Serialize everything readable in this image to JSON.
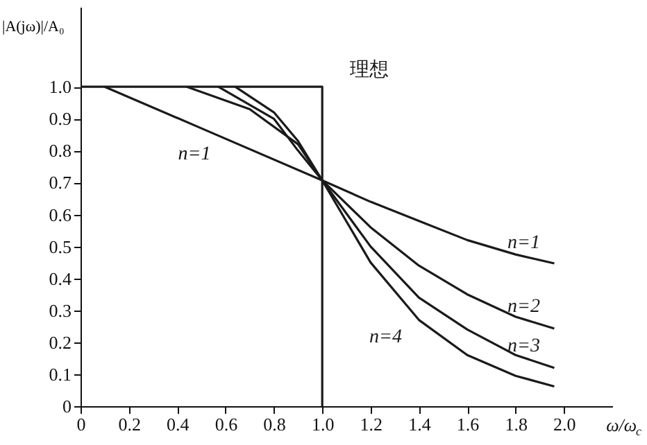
{
  "chart_data": {
    "type": "line",
    "xlabel": "ω/ω$_{c}$",
    "ylabel": "|A(jω)|/A₀",
    "xlim": [
      0,
      2.2
    ],
    "ylim": [
      0,
      1.25
    ],
    "xticks": [
      0,
      0.2,
      0.4,
      0.6,
      0.8,
      {
        "value": 1.0,
        "label": "1.0"
      },
      1.2,
      1.4,
      1.6,
      1.8,
      {
        "value": 2.0,
        "label": "2.0"
      }
    ],
    "yticks": [
      0,
      0.1,
      0.2,
      0.3,
      0.4,
      0.5,
      0.6,
      0.7,
      0.8,
      0.9,
      {
        "value": 1.0,
        "label": "1.0"
      }
    ],
    "grid": false,
    "marker": "none",
    "line_style": "solid",
    "series": [
      {
        "name": "理想",
        "color": "#1a1a1a",
        "x": [
          0,
          1.0,
          1.0
        ],
        "values": [
          1.0,
          1.0,
          0
        ]
      },
      {
        "name": "n=1",
        "color": "#1a1a1a",
        "x": [
          0.1,
          0.5,
          1.0,
          1.2,
          1.4,
          1.6,
          1.8,
          1.96
        ],
        "values": [
          1.0,
          0.87,
          0.707,
          0.64,
          0.58,
          0.52,
          0.475,
          0.447
        ]
      },
      {
        "name": "n=2",
        "color": "#1a1a1a",
        "x": [
          0.44,
          0.7,
          0.9,
          1.0,
          1.2,
          1.4,
          1.6,
          1.8,
          1.96
        ],
        "values": [
          1.0,
          0.93,
          0.82,
          0.707,
          0.56,
          0.44,
          0.35,
          0.28,
          0.243
        ]
      },
      {
        "name": "n=3",
        "color": "#1a1a1a",
        "x": [
          0.57,
          0.8,
          0.9,
          1.0,
          1.2,
          1.4,
          1.6,
          1.8,
          1.96
        ],
        "values": [
          1.0,
          0.9,
          0.8,
          0.707,
          0.5,
          0.34,
          0.24,
          0.16,
          0.12
        ]
      },
      {
        "name": "n=4",
        "color": "#1a1a1a",
        "x": [
          0.64,
          0.8,
          0.9,
          1.0,
          1.2,
          1.4,
          1.6,
          1.8,
          1.96
        ],
        "values": [
          1.0,
          0.92,
          0.83,
          0.707,
          0.45,
          0.27,
          0.16,
          0.095,
          0.062
        ]
      }
    ],
    "annotations": [
      "n=1"
    ]
  }
}
